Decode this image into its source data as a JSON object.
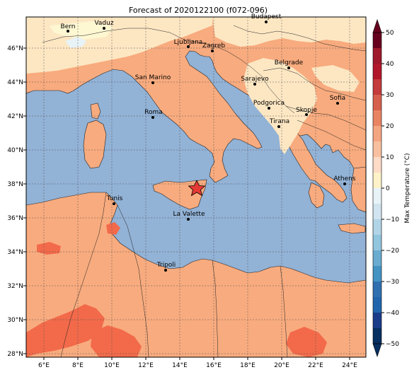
{
  "title": "Forecast of 2020122100 (f072-096)",
  "lon_labels": [
    "6°E",
    "8°E",
    "10°E",
    "12°E",
    "14°E",
    "16°E",
    "18°E",
    "20°E",
    "22°E",
    "24°E"
  ],
  "lat_labels": [
    "46°N",
    "44°N",
    "42°N",
    "40°N",
    "38°N",
    "36°N",
    "34°N",
    "32°N",
    "30°N",
    "28°N"
  ],
  "colorbar": {
    "label": "Max Temperature (°C)",
    "ticks": [
      "50",
      "40",
      "30",
      "20",
      "10",
      "0",
      "−10",
      "−20",
      "−30",
      "−40",
      "−50"
    ],
    "colors": [
      "#67001f",
      "#b2182b",
      "#d6604d",
      "#f4a582",
      "#fddbc7",
      "#f7f7f7",
      "#d1e5f0",
      "#92c5de",
      "#4393c3",
      "#2166ac",
      "#053061"
    ]
  },
  "cities": [
    "Bern",
    "Vaduz",
    "Budapest",
    "Ljubljana",
    "Zagreb",
    "Belgrade",
    "San Marino",
    "Sarajevo",
    "Sofia",
    "Podgorica",
    "Skopje",
    "Roma",
    "Tirana",
    "Athens",
    "Tunis",
    "La Valette",
    "Tripoli"
  ],
  "colors": {
    "sea": "#92b2d6",
    "land_warm": "#f8ab7e",
    "land_hot": "#f26a4a",
    "land_mild": "#fde7c3",
    "land_cool": "#fdf7d2",
    "snow": "#e8f3f8",
    "marker": "#e53935"
  }
}
